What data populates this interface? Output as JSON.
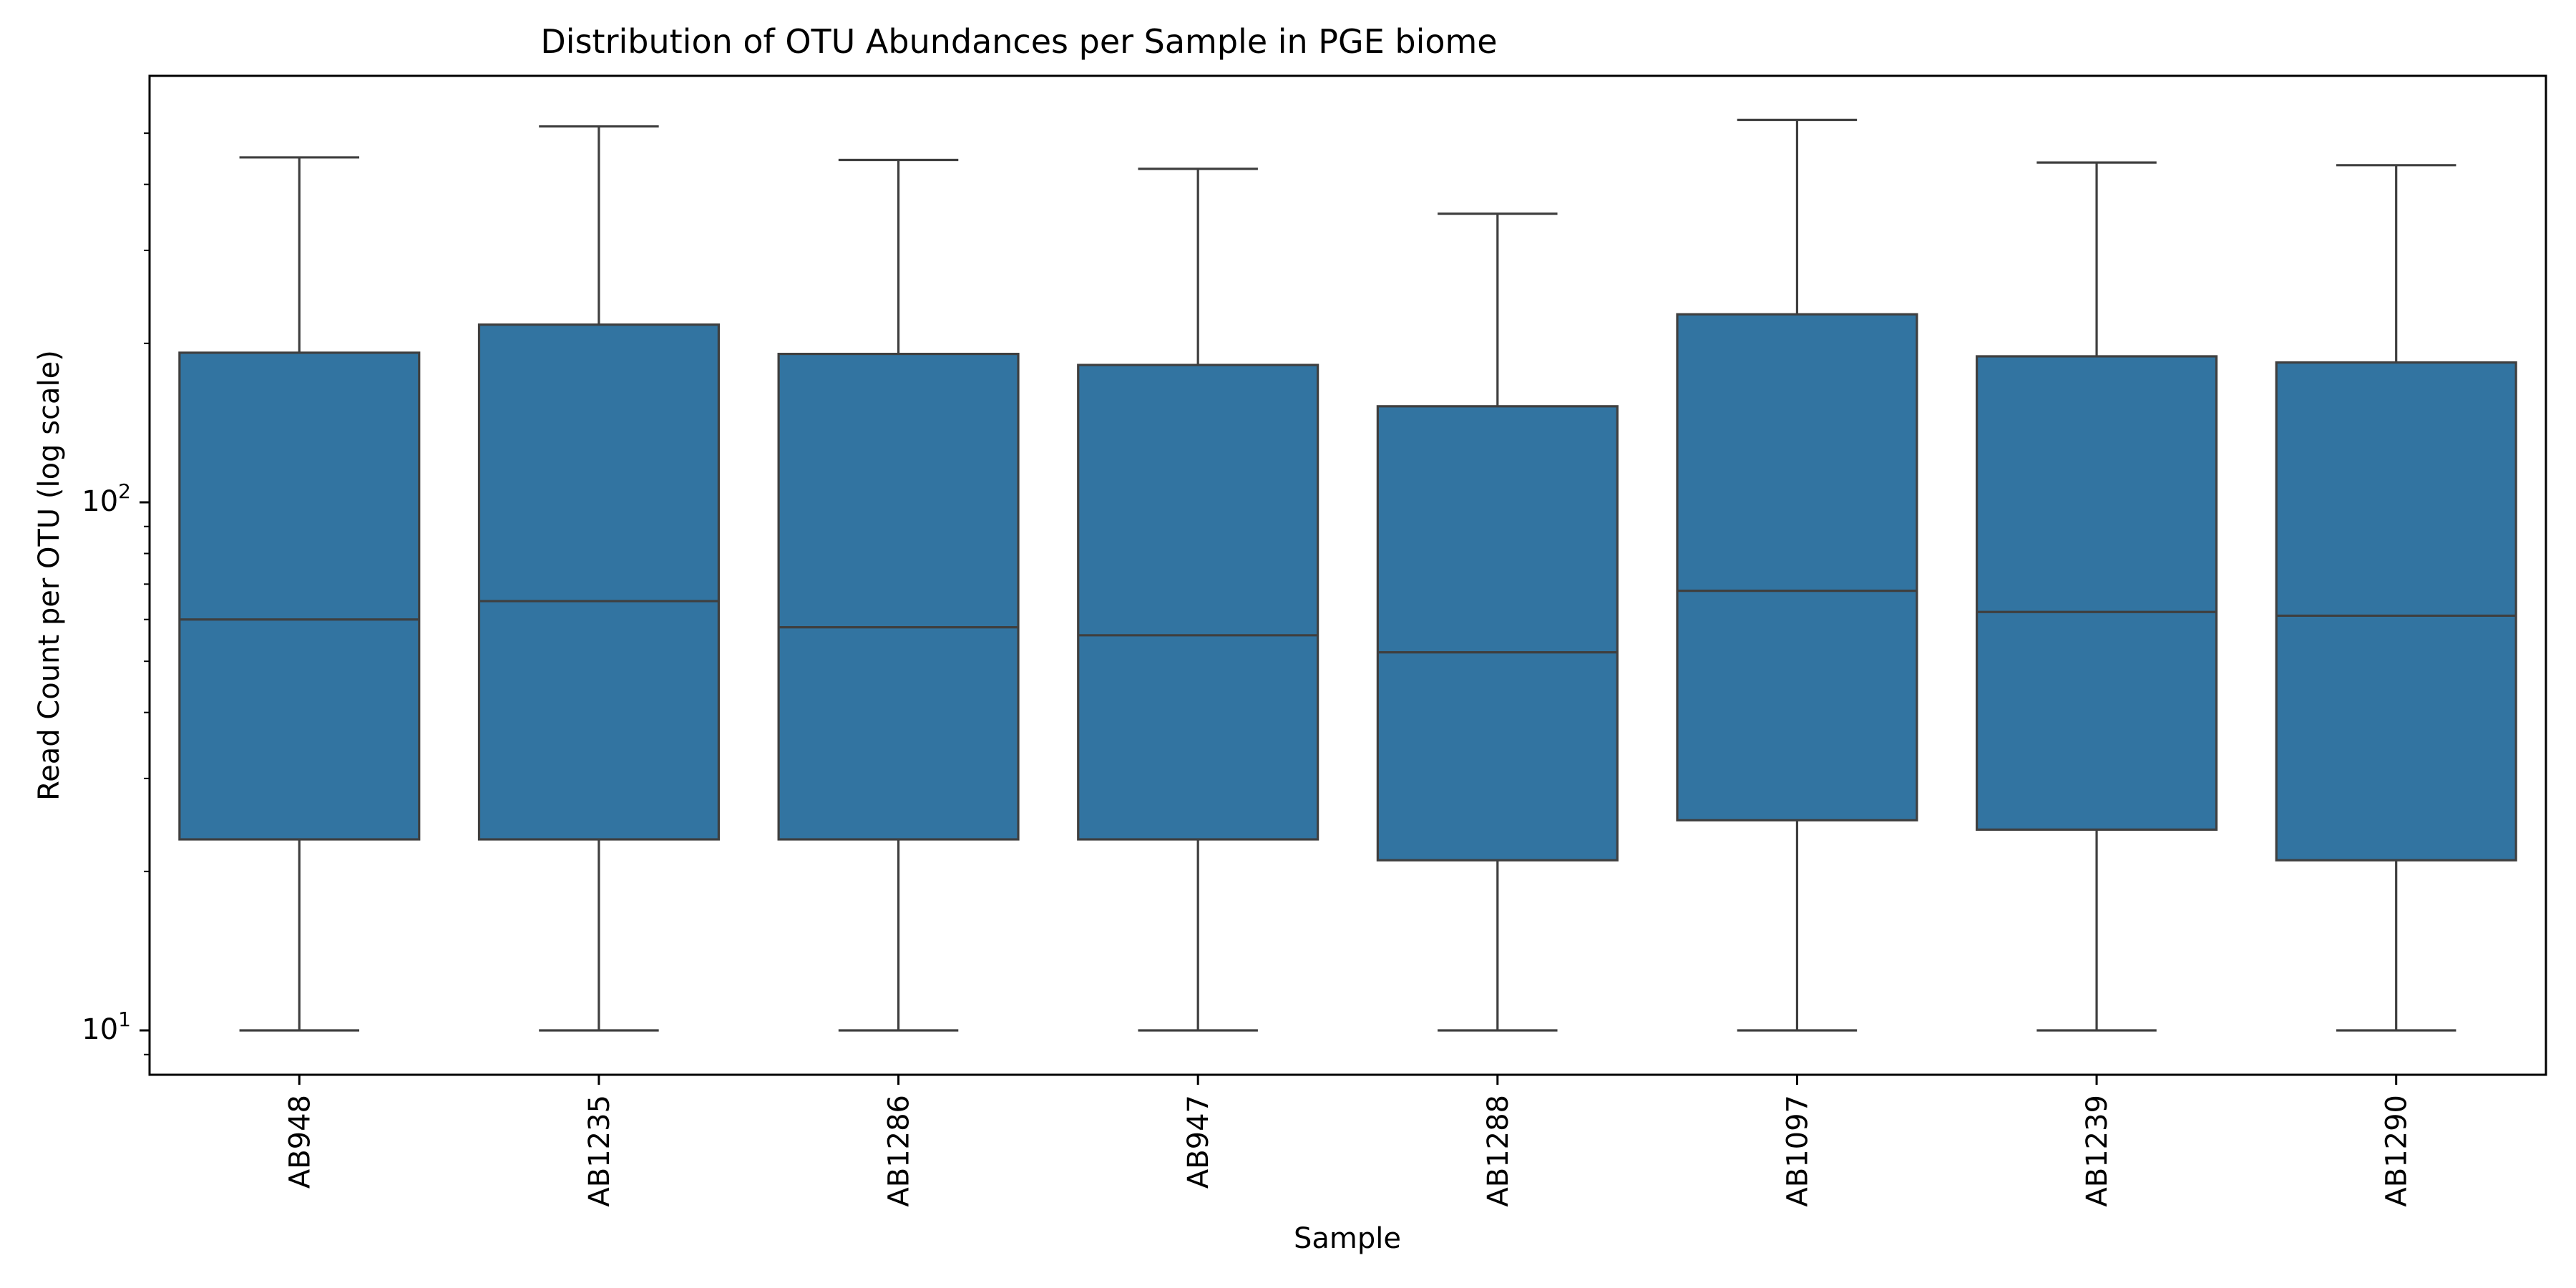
{
  "chart_data": {
    "type": "box",
    "title": "Distribution of OTU Abundances per Sample in PGE biome",
    "xlabel": "Sample",
    "ylabel": "Read Count per OTU (log scale)",
    "y_scale": "log",
    "ylim": [
      8.2,
      600
    ],
    "y_tick_labels": [
      {
        "value": 10,
        "label": "10",
        "exp": "1"
      },
      {
        "value": 100,
        "label": "10",
        "exp": "2"
      }
    ],
    "box_color": "#3274a1",
    "line_color": "#3f3f3f",
    "grid": false,
    "legend": "none",
    "categories": [
      "AB948",
      "AB1235",
      "AB1286",
      "AB947",
      "AB1288",
      "AB1097",
      "AB1239",
      "AB1290"
    ],
    "boxes": [
      {
        "label": "AB948",
        "whisker_low": 10,
        "q1": 23,
        "median": 60,
        "q3": 192,
        "whisker_high": 450
      },
      {
        "label": "AB1235",
        "whisker_low": 10,
        "q1": 23,
        "median": 65,
        "q3": 217,
        "whisker_high": 515
      },
      {
        "label": "AB1286",
        "whisker_low": 10,
        "q1": 23,
        "median": 58,
        "q3": 191,
        "whisker_high": 445
      },
      {
        "label": "AB947",
        "whisker_low": 10,
        "q1": 23,
        "median": 56,
        "q3": 182,
        "whisker_high": 428
      },
      {
        "label": "AB1288",
        "whisker_low": 10,
        "q1": 21,
        "median": 52,
        "q3": 152,
        "whisker_high": 352
      },
      {
        "label": "AB1097",
        "whisker_low": 10,
        "q1": 25,
        "median": 68,
        "q3": 227,
        "whisker_high": 530
      },
      {
        "label": "AB1239",
        "whisker_low": 10,
        "q1": 24,
        "median": 62,
        "q3": 189,
        "whisker_high": 440
      },
      {
        "label": "AB1290",
        "whisker_low": 10,
        "q1": 21,
        "median": 61,
        "q3": 184,
        "whisker_high": 435
      }
    ]
  }
}
